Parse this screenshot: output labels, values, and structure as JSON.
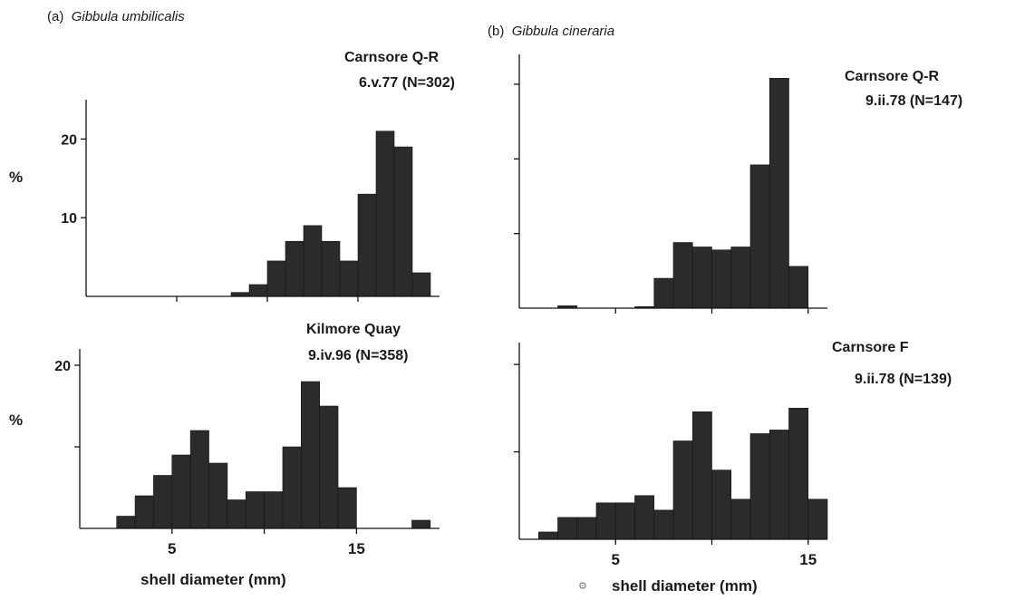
{
  "panels": [
    {
      "letter": "(a)",
      "species": "Gibbula umbilicalis"
    },
    {
      "letter": "(b)",
      "species": "Gibbula cineraria"
    }
  ],
  "chart_data": [
    {
      "type": "bar",
      "panel": "a",
      "title_line1": "Carnsore Q-R",
      "title_line2": "6.v.77 (N=302)",
      "ylabel": "%",
      "xlabel": "",
      "x": [
        0,
        1,
        2,
        3,
        4,
        5,
        6,
        7,
        8,
        9,
        10,
        11,
        12,
        13,
        14,
        15,
        16,
        17,
        18
      ],
      "values": [
        0,
        0,
        0,
        0,
        0,
        0,
        0,
        0,
        0.5,
        1.5,
        4.5,
        7,
        9,
        7,
        4.5,
        13,
        21,
        19,
        3
      ],
      "xlim": [
        0,
        19.5
      ],
      "ylim": [
        0,
        25
      ],
      "yticks": [
        10,
        20
      ],
      "ytick_labels": [
        "10",
        "20"
      ],
      "xticks": [
        5,
        10,
        15
      ],
      "xtick_labels": [
        "",
        "",
        ""
      ],
      "grid": false,
      "bar_color": "#2b2b2b"
    },
    {
      "type": "bar",
      "panel": "a",
      "title_line1": "Kilmore Quay",
      "title_line2": "9.iv.96 (N=358)",
      "ylabel": "%",
      "xlabel": "shell diameter (mm)",
      "x": [
        2,
        3,
        4,
        5,
        6,
        7,
        8,
        9,
        10,
        11,
        12,
        13,
        14,
        15,
        16,
        17,
        18
      ],
      "values": [
        1.5,
        4,
        6.5,
        9,
        12,
        8,
        3.5,
        4.5,
        4.5,
        10,
        18,
        15,
        5,
        0,
        0,
        0,
        1
      ],
      "xlim": [
        0,
        19.5
      ],
      "ylim": [
        0,
        22
      ],
      "yticks": [
        10,
        20
      ],
      "ytick_labels": [
        "",
        "20"
      ],
      "xticks": [
        5,
        10,
        15
      ],
      "xtick_labels": [
        "5",
        "",
        "15"
      ],
      "grid": false,
      "bar_color": "#2b2b2b"
    },
    {
      "type": "bar",
      "panel": "b",
      "title_line1": "Carnsore Q-R",
      "title_line2": "9.ii.78 (N=147)",
      "ylabel": "",
      "xlabel": "",
      "x": [
        2,
        3,
        4,
        5,
        6,
        7,
        8,
        9,
        10,
        11,
        12,
        13,
        14
      ],
      "values": [
        0.8,
        0,
        0,
        0,
        0.5,
        10,
        22,
        20.5,
        19.5,
        20.5,
        48,
        77,
        14
      ],
      "xlim": [
        0,
        16
      ],
      "ylim": [
        0,
        85
      ],
      "yticks": [
        25,
        50,
        75
      ],
      "ytick_labels": [
        "",
        "",
        ""
      ],
      "xticks": [
        5,
        10,
        15
      ],
      "xtick_labels": [
        "",
        "",
        ""
      ],
      "grid": false,
      "bar_color": "#2b2b2b"
    },
    {
      "type": "bar",
      "panel": "b",
      "title_line1": "Carnsore F",
      "title_line2": "9.ii.78 (N=139)",
      "ylabel": "",
      "xlabel": "shell diameter (mm)",
      "x": [
        1,
        2,
        3,
        4,
        5,
        6,
        7,
        8,
        9,
        10,
        11,
        12,
        13,
        14,
        15
      ],
      "values": [
        1,
        3,
        3,
        5,
        5,
        6,
        4,
        13.5,
        17.5,
        9.5,
        5.5,
        14.5,
        15,
        18,
        5.5
      ],
      "xlim": [
        0,
        16
      ],
      "ylim": [
        0,
        27
      ],
      "yticks": [
        12,
        24
      ],
      "ytick_labels": [
        "",
        ""
      ],
      "xticks": [
        5,
        10,
        15
      ],
      "xtick_labels": [
        "5",
        "",
        "15"
      ],
      "grid": false,
      "bar_color": "#2b2b2b"
    }
  ]
}
